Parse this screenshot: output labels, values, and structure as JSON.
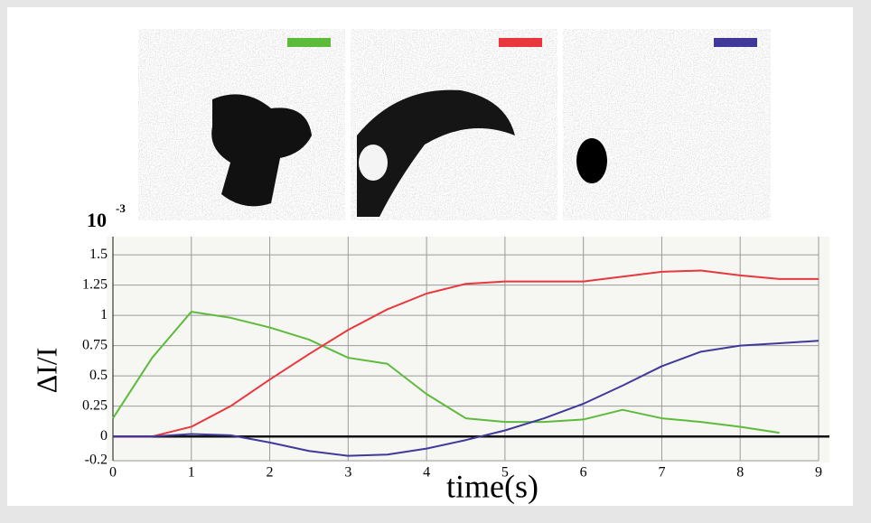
{
  "chart_data": {
    "type": "line",
    "y_label": "ΔI/I",
    "x_label": "time(s)",
    "y_multiplier": {
      "base": "10",
      "exponent": "-3"
    },
    "x": [
      0,
      0.5,
      1,
      1.5,
      2,
      2.5,
      3,
      3.5,
      4,
      4.5,
      5,
      5.5,
      6,
      6.5,
      7,
      7.5,
      8,
      8.5,
      9
    ],
    "series": [
      {
        "color": "#5dbb3c",
        "values": [
          0.15,
          0.65,
          1.03,
          0.98,
          0.9,
          0.8,
          0.65,
          0.6,
          0.35,
          0.15,
          0.12,
          0.12,
          0.14,
          0.22,
          0.15,
          0.12,
          0.08,
          0.03,
          null
        ]
      },
      {
        "color": "#e8383d",
        "values": [
          0,
          0,
          0.08,
          0.25,
          0.47,
          0.68,
          0.88,
          1.05,
          1.18,
          1.26,
          1.28,
          1.28,
          1.28,
          1.32,
          1.36,
          1.37,
          1.33,
          1.3,
          1.3
        ]
      },
      {
        "color": "#40399a",
        "values": [
          0,
          0,
          0.02,
          0.01,
          -0.05,
          -0.12,
          -0.16,
          -0.15,
          -0.1,
          -0.03,
          0.05,
          0.15,
          0.27,
          0.42,
          0.58,
          0.7,
          0.75,
          0.77,
          0.79
        ]
      }
    ],
    "xlim": [
      0,
      9
    ],
    "ylim": [
      -0.2,
      1.65
    ],
    "xticks": [
      0,
      1,
      2,
      3,
      4,
      5,
      6,
      7,
      8,
      9
    ],
    "yticks": [
      -0.2,
      0,
      0.25,
      0.5,
      0.75,
      1,
      1.25,
      1.5
    ],
    "grid": true
  }
}
